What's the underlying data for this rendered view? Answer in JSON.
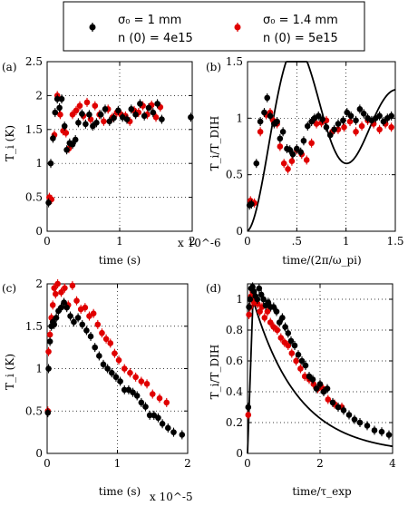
{
  "legend": {
    "entries": [
      {
        "line1": "σ₀ = 1 mm",
        "line2": "n (0) = 4e15",
        "color": "#000000"
      },
      {
        "line1": "σ₀ = 1.4 mm",
        "line2": "n (0) = 5e15",
        "color": "#e00000"
      }
    ]
  },
  "chart_data": [
    {
      "panel": "(a)",
      "type": "scatter",
      "xlabel": "time (s)",
      "ylabel": "T_i (K)",
      "x_multiplier": "x 10^-6",
      "xlim": [
        0,
        2
      ],
      "ylim": [
        0,
        2.5
      ],
      "xticks": [
        0,
        1,
        2
      ],
      "xtick_labels": [
        "0",
        "1",
        "2"
      ],
      "yticks": [
        0,
        0.5,
        1,
        1.5,
        2,
        2.5
      ],
      "ytick_labels": [
        "0",
        "0.5",
        "1",
        "1.5",
        "2",
        "2.5"
      ],
      "grid": true,
      "series": [
        {
          "name": "σ₀ = 1 mm",
          "color": "#000000",
          "x": [
            0.02,
            0.05,
            0.08,
            0.11,
            0.14,
            0.17,
            0.2,
            0.24,
            0.27,
            0.31,
            0.35,
            0.39,
            0.43,
            0.48,
            0.53,
            0.58,
            0.63,
            0.68,
            0.74,
            0.8,
            0.86,
            0.92,
            0.98,
            1.04,
            1.1,
            1.16,
            1.22,
            1.28,
            1.34,
            1.4,
            1.46,
            1.52,
            1.58,
            1.98
          ],
          "y": [
            0.42,
            1.0,
            1.37,
            1.75,
            1.95,
            1.82,
            1.95,
            1.55,
            1.2,
            1.3,
            1.28,
            1.35,
            1.6,
            1.73,
            1.58,
            1.72,
            1.55,
            1.6,
            1.72,
            1.8,
            1.62,
            1.67,
            1.78,
            1.68,
            1.65,
            1.8,
            1.72,
            1.88,
            1.7,
            1.82,
            1.75,
            1.88,
            1.65,
            1.68
          ]
        },
        {
          "name": "σ₀ = 1.4 mm",
          "color": "#e00000",
          "x": [
            0.03,
            0.06,
            0.1,
            0.14,
            0.18,
            0.22,
            0.26,
            0.3,
            0.35,
            0.4,
            0.45,
            0.5,
            0.55,
            0.6,
            0.66,
            0.72,
            0.78,
            0.84,
            0.9,
            0.96,
            1.02,
            1.08,
            1.14,
            1.2,
            1.26,
            1.32,
            1.38,
            1.44,
            1.5,
            1.56
          ],
          "y": [
            0.5,
            0.47,
            1.42,
            2.0,
            1.72,
            1.48,
            1.45,
            1.22,
            1.72,
            1.78,
            1.85,
            1.7,
            1.9,
            1.65,
            1.85,
            1.72,
            1.62,
            1.8,
            1.68,
            1.75,
            1.72,
            1.7,
            1.62,
            1.78,
            1.75,
            1.85,
            1.72,
            1.86,
            1.68,
            1.83
          ]
        }
      ]
    },
    {
      "panel": "(b)",
      "type": "scatter",
      "xlabel": "time/(2π/ω_pi)",
      "ylabel": "T_i/T_DIH",
      "xlim": [
        0,
        1.5
      ],
      "ylim": [
        0,
        1.5
      ],
      "xticks": [
        0,
        0.5,
        1,
        1.5
      ],
      "xtick_labels": [
        "0",
        ".5",
        "1",
        "1.5"
      ],
      "yticks": [
        0,
        0.5,
        1,
        1.5
      ],
      "ytick_labels": [
        "0",
        "0.5",
        "1",
        "1.5"
      ],
      "grid": true,
      "series": [
        {
          "name": "σ₀ = 1 mm",
          "color": "#000000",
          "x": [
            0.02,
            0.04,
            0.09,
            0.13,
            0.17,
            0.2,
            0.23,
            0.27,
            0.3,
            0.33,
            0.36,
            0.4,
            0.43,
            0.46,
            0.5,
            0.54,
            0.57,
            0.61,
            0.65,
            0.68,
            0.72,
            0.76,
            0.8,
            0.84,
            0.88,
            0.92,
            0.97,
            1.01,
            1.05,
            1.1,
            1.14,
            1.18,
            1.22,
            1.26,
            1.3,
            1.34,
            1.38,
            1.42,
            1.46
          ],
          "y": [
            0.23,
            0.24,
            0.6,
            0.97,
            1.05,
            1.18,
            1.02,
            0.95,
            0.97,
            0.82,
            0.88,
            0.73,
            0.72,
            0.68,
            0.73,
            0.7,
            0.8,
            0.93,
            0.97,
            1.0,
            1.02,
            0.99,
            0.92,
            0.85,
            0.9,
            0.95,
            0.98,
            1.05,
            1.02,
            0.98,
            1.08,
            1.04,
            1.0,
            0.98,
            1.0,
            1.02,
            0.97,
            1.0,
            1.02
          ]
        },
        {
          "name": "σ₀ = 1.4 mm",
          "color": "#e00000",
          "x": [
            0.03,
            0.07,
            0.13,
            0.19,
            0.23,
            0.26,
            0.3,
            0.33,
            0.37,
            0.41,
            0.45,
            0.5,
            0.55,
            0.6,
            0.65,
            0.7,
            0.75,
            0.8,
            0.86,
            0.92,
            0.98,
            1.04,
            1.1,
            1.16,
            1.22,
            1.28,
            1.34,
            1.4,
            1.46
          ],
          "y": [
            0.27,
            0.25,
            0.88,
            1.03,
            1.05,
            0.98,
            0.95,
            0.75,
            0.6,
            0.55,
            0.62,
            0.72,
            0.68,
            0.63,
            0.78,
            0.95,
            0.96,
            0.98,
            0.88,
            0.9,
            0.92,
            0.97,
            0.88,
            0.93,
            0.98,
            0.95,
            0.9,
            0.95,
            0.92
          ]
        },
        {
          "name": "model",
          "type": "line",
          "color": "#000000",
          "note": "damped oscillation curve"
        }
      ]
    },
    {
      "panel": "(c)",
      "type": "scatter",
      "xlabel": "time (s)",
      "ylabel": "T_i (K)",
      "x_multiplier": "x 10^-5",
      "xlim": [
        0,
        2
      ],
      "ylim": [
        0,
        2
      ],
      "xticks": [
        0,
        1,
        2
      ],
      "xtick_labels": [
        "0",
        "1",
        "2"
      ],
      "yticks": [
        0,
        0.5,
        1,
        1.5,
        2
      ],
      "ytick_labels": [
        "0",
        "0.5",
        "1",
        "1.5",
        "2"
      ],
      "grid": true,
      "series": [
        {
          "name": "σ₀ = 1 mm",
          "color": "#000000",
          "x": [
            0.01,
            0.02,
            0.04,
            0.06,
            0.08,
            0.1,
            0.13,
            0.16,
            0.2,
            0.24,
            0.28,
            0.33,
            0.38,
            0.44,
            0.5,
            0.56,
            0.62,
            0.68,
            0.74,
            0.8,
            0.86,
            0.92,
            0.98,
            1.04,
            1.1,
            1.16,
            1.22,
            1.28,
            1.34,
            1.4,
            1.46,
            1.52,
            1.58,
            1.64,
            1.72,
            1.8,
            1.92
          ],
          "y": [
            0.48,
            1.0,
            1.32,
            1.5,
            1.55,
            1.52,
            1.6,
            1.68,
            1.72,
            1.78,
            1.72,
            1.62,
            1.55,
            1.6,
            1.52,
            1.45,
            1.38,
            1.25,
            1.15,
            1.05,
            1.0,
            0.95,
            0.9,
            0.85,
            0.75,
            0.75,
            0.72,
            0.68,
            0.6,
            0.55,
            0.45,
            0.45,
            0.42,
            0.35,
            0.3,
            0.25,
            0.22
          ]
        },
        {
          "name": "σ₀ = 1.4 mm",
          "color": "#e00000",
          "x": [
            0.01,
            0.02,
            0.04,
            0.06,
            0.08,
            0.1,
            0.12,
            0.15,
            0.2,
            0.25,
            0.3,
            0.36,
            0.42,
            0.48,
            0.54,
            0.6,
            0.66,
            0.72,
            0.78,
            0.84,
            0.9,
            0.96,
            1.02,
            1.1,
            1.18,
            1.26,
            1.34,
            1.42,
            1.5,
            1.6,
            1.7
          ],
          "y": [
            0.5,
            1.2,
            1.4,
            1.6,
            1.75,
            1.95,
            1.88,
            2.0,
            1.9,
            1.95,
            1.75,
            1.98,
            1.8,
            1.7,
            1.72,
            1.62,
            1.65,
            1.52,
            1.42,
            1.35,
            1.3,
            1.18,
            1.1,
            1.0,
            0.95,
            0.9,
            0.85,
            0.82,
            0.7,
            0.65,
            0.6
          ]
        }
      ]
    },
    {
      "panel": "(d)",
      "type": "scatter",
      "xlabel": "time/τ_exp",
      "ylabel": "T_i/T_DIH",
      "xlim": [
        0,
        4
      ],
      "ylim": [
        0,
        1.1
      ],
      "xticks": [
        0,
        2,
        4
      ],
      "xtick_labels": [
        "0",
        "2",
        "4"
      ],
      "yticks": [
        0,
        0.2,
        0.4,
        0.6,
        0.8,
        1
      ],
      "ytick_labels": [
        "0",
        "0.2",
        "0.4",
        "0.6",
        "0.8",
        "1"
      ],
      "grid": true,
      "series": [
        {
          "name": "σ₀ = 1 mm",
          "color": "#000000",
          "x": [
            0.02,
            0.04,
            0.07,
            0.1,
            0.14,
            0.18,
            0.22,
            0.27,
            0.32,
            0.38,
            0.44,
            0.5,
            0.57,
            0.64,
            0.72,
            0.8,
            0.88,
            0.96,
            1.04,
            1.12,
            1.2,
            1.3,
            1.4,
            1.5,
            1.6,
            1.7,
            1.8,
            1.9,
            2.0,
            2.1,
            2.2,
            2.35,
            2.5,
            2.65,
            2.8,
            2.95,
            3.1,
            3.3,
            3.5,
            3.7,
            3.9
          ],
          "y": [
            0.3,
            0.95,
            1.0,
            1.07,
            1.08,
            1.05,
            1.02,
            1.0,
            1.07,
            1.03,
            1.0,
            0.96,
            0.98,
            0.95,
            0.95,
            0.92,
            0.85,
            0.88,
            0.82,
            0.78,
            0.73,
            0.7,
            0.64,
            0.6,
            0.57,
            0.5,
            0.48,
            0.42,
            0.45,
            0.4,
            0.42,
            0.33,
            0.3,
            0.28,
            0.25,
            0.22,
            0.2,
            0.18,
            0.15,
            0.14,
            0.12
          ]
        },
        {
          "name": "σ₀ = 1.4 mm",
          "color": "#e00000",
          "x": [
            0.02,
            0.04,
            0.07,
            0.1,
            0.14,
            0.18,
            0.23,
            0.28,
            0.34,
            0.4,
            0.47,
            0.55,
            0.63,
            0.72,
            0.82,
            0.92,
            1.02,
            1.12,
            1.22,
            1.34,
            1.46,
            1.58,
            1.7,
            1.82,
            1.94,
            2.08,
            2.22,
            2.4,
            2.6
          ],
          "y": [
            0.25,
            0.9,
            0.95,
            1.02,
            1.05,
            0.98,
            1.0,
            0.97,
            0.92,
            0.95,
            0.88,
            0.92,
            0.85,
            0.82,
            0.8,
            0.75,
            0.72,
            0.7,
            0.65,
            0.6,
            0.55,
            0.5,
            0.48,
            0.45,
            0.42,
            0.42,
            0.35,
            0.32,
            0.3
          ]
        },
        {
          "name": "model",
          "type": "line",
          "color": "#000000",
          "note": "rise then decay curve"
        }
      ]
    }
  ]
}
